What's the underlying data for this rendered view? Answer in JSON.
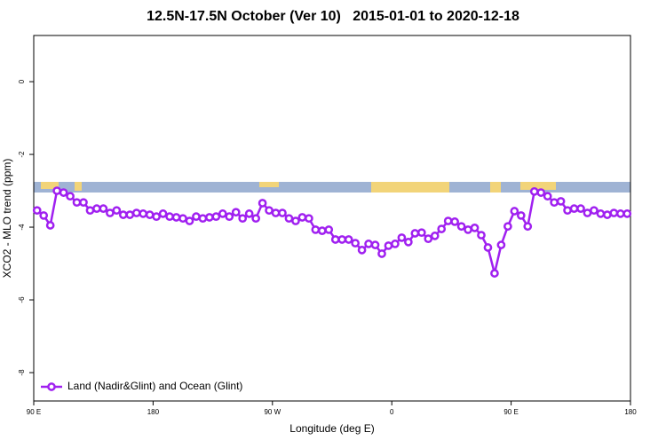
{
  "chart_data": {
    "type": "line",
    "title": "12.5N-17.5N October (Ver 10)   2015-01-01 to 2020-12-18",
    "x_label": "Longitude (deg E)",
    "y_label": "XCO2 - MLO trend (ppm)",
    "x": [
      92.5,
      97.5,
      102.5,
      107.5,
      112.5,
      117.5,
      122.5,
      127.5,
      132.5,
      137.5,
      142.5,
      147.5,
      152.5,
      157.5,
      162.5,
      167.5,
      172.5,
      177.5,
      182.5,
      187.5,
      192.5,
      197.5,
      202.5,
      207.5,
      212.5,
      217.5,
      222.5,
      227.5,
      232.5,
      237.5,
      242.5,
      247.5,
      252.5,
      257.5,
      262.5,
      267.5,
      272.5,
      277.5,
      282.5,
      287.5,
      292.5,
      297.5,
      302.5,
      307.5,
      312.5,
      317.5,
      322.5,
      327.5,
      332.5,
      337.5,
      342.5,
      347.5,
      352.5,
      357.5,
      362.5,
      367.5,
      372.5,
      377.5,
      382.5,
      387.5,
      392.5,
      397.5,
      402.5,
      407.5,
      412.5,
      417.5,
      422.5,
      427.5,
      432.5,
      437.5,
      442.5,
      447.5,
      452.5,
      457.5,
      462.5,
      467.5,
      472.5,
      477.5,
      482.5,
      487.5,
      492.5,
      497.5,
      502.5,
      507.5,
      512.5,
      517.5,
      522.5,
      527.5,
      532.5,
      537.5
    ],
    "series": [
      {
        "name": "Land (Nadir&Glint) and Ocean (Glint)",
        "color": "#a020f0",
        "values": [
          -3.54,
          -3.68,
          -3.95,
          -3.0,
          -3.05,
          -3.15,
          -3.32,
          -3.32,
          -3.54,
          -3.49,
          -3.49,
          -3.61,
          -3.54,
          -3.66,
          -3.66,
          -3.61,
          -3.63,
          -3.66,
          -3.71,
          -3.63,
          -3.71,
          -3.73,
          -3.76,
          -3.83,
          -3.71,
          -3.76,
          -3.73,
          -3.71,
          -3.63,
          -3.71,
          -3.59,
          -3.76,
          -3.63,
          -3.76,
          -3.34,
          -3.54,
          -3.61,
          -3.61,
          -3.76,
          -3.83,
          -3.73,
          -3.76,
          -4.07,
          -4.1,
          -4.07,
          -4.34,
          -4.34,
          -4.34,
          -4.44,
          -4.63,
          -4.46,
          -4.49,
          -4.73,
          -4.51,
          -4.46,
          -4.29,
          -4.41,
          -4.17,
          -4.15,
          -4.32,
          -4.24,
          -4.05,
          -3.83,
          -3.85,
          -3.98,
          -4.07,
          -4.02,
          -4.22,
          -4.56,
          -5.27,
          -4.49,
          -3.98,
          -3.56,
          -3.68,
          -3.98,
          -3.02,
          -3.05,
          -3.15,
          -3.32,
          -3.29,
          -3.54,
          -3.49,
          -3.49,
          -3.61,
          -3.54,
          -3.63,
          -3.66,
          -3.61,
          -3.63,
          -3.63
        ]
      }
    ],
    "xlim": [
      90,
      540
    ],
    "xticks": [
      {
        "value": 90,
        "label": "90 E"
      },
      {
        "value": 180,
        "label": "180"
      },
      {
        "value": 270,
        "label": "90 W"
      },
      {
        "value": 360,
        "label": "0"
      },
      {
        "value": 450,
        "label": "90 E"
      },
      {
        "value": 540,
        "label": "180"
      }
    ],
    "ylim": [
      -8.78,
      1.27
    ],
    "yticks": [
      0,
      -2,
      -4,
      -6,
      -8
    ],
    "legend": "bottom-left"
  }
}
